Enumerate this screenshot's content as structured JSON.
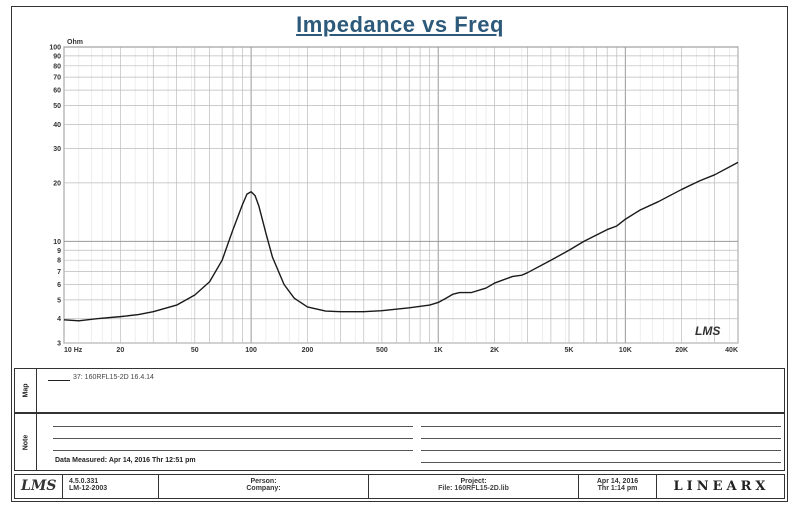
{
  "chart_data": {
    "type": "line",
    "title": "Impedance vs Freq",
    "xscale": "log",
    "yscale": "log",
    "xlim": [
      10,
      40000
    ],
    "ylim": [
      3,
      100
    ],
    "grid": true,
    "y_unit": "Ohm",
    "xticks": [
      "10 Hz",
      "20",
      "50",
      "100",
      "200",
      "500",
      "1K",
      "2K",
      "5K",
      "10K",
      "20K",
      "40K"
    ],
    "yticks": [
      "3",
      "4",
      "5",
      "6",
      "7",
      "8",
      "9",
      "10",
      "20",
      "30",
      "40",
      "50",
      "60",
      "70",
      "80",
      "90",
      "100"
    ],
    "series": [
      {
        "name": "37: 160RFL15-2D 16.4.14",
        "color": "#1a1a1a",
        "x": [
          10,
          12,
          15,
          20,
          25,
          30,
          40,
          50,
          60,
          70,
          80,
          90,
          95,
          100,
          105,
          110,
          120,
          130,
          150,
          170,
          200,
          250,
          300,
          400,
          500,
          700,
          900,
          1000,
          1100,
          1200,
          1300,
          1500,
          1800,
          2000,
          2500,
          2800,
          3000,
          4000,
          5000,
          6000,
          8000,
          9000,
          10000,
          12000,
          15000,
          20000,
          25000,
          30000,
          40000
        ],
        "y": [
          3.95,
          3.9,
          4.0,
          4.1,
          4.2,
          4.35,
          4.7,
          5.3,
          6.2,
          8.0,
          11.5,
          15.5,
          17.5,
          18.0,
          17.2,
          15.2,
          11.0,
          8.3,
          6.0,
          5.1,
          4.6,
          4.38,
          4.35,
          4.35,
          4.4,
          4.55,
          4.7,
          4.85,
          5.1,
          5.35,
          5.45,
          5.45,
          5.75,
          6.1,
          6.6,
          6.7,
          6.9,
          8.0,
          9.0,
          10.0,
          11.5,
          12.0,
          13.0,
          14.5,
          16.0,
          18.5,
          20.5,
          22.0,
          25.5
        ]
      }
    ]
  },
  "legend": {
    "side_label": "Map",
    "entry": "37: 160RFL15-2D 16.4.14"
  },
  "notes": {
    "side_label": "Note",
    "measured": "Data Measured: Apr 14, 2016  Thr 12:51 pm"
  },
  "footer": {
    "logo": "LMS",
    "version": "4.5.0.331",
    "serial": "LM-12-2003",
    "person_label": "Person:",
    "company_label": "Company:",
    "project_label": "Project:",
    "file_label": "File: 160RFL15-2D.lib",
    "date": "Apr 14, 2016",
    "time": "Thr  1:14 pm",
    "brand": "LINEARX"
  },
  "watermark": "LMS"
}
